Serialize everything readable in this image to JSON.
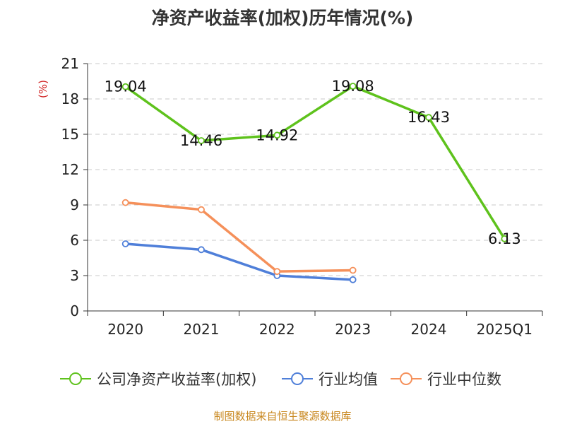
{
  "chart_data": {
    "type": "line",
    "title": "净资产收益率(加权)历年情况(%)",
    "ylabel": "(%)",
    "xlabel": "",
    "categories": [
      "2020",
      "2021",
      "2022",
      "2023",
      "2024",
      "2025Q1"
    ],
    "y_ticks": [
      0,
      3,
      6,
      9,
      12,
      15,
      18,
      21
    ],
    "ylim": [
      0,
      21
    ],
    "grid": true,
    "legend_position": "bottom",
    "series": [
      {
        "name": "公司净资产收益率(加权)",
        "color": "#5ec21c",
        "values": [
          19.04,
          14.46,
          14.92,
          19.08,
          16.43,
          6.13
        ],
        "labels": [
          "19.04",
          "14.46",
          "14.92",
          "19.08",
          "16.43",
          "6.13"
        ]
      },
      {
        "name": "行业均值",
        "color": "#4f7fd9",
        "values": [
          5.7,
          5.2,
          3.0,
          2.65,
          null,
          null
        ]
      },
      {
        "name": "行业中位数",
        "color": "#f5905a",
        "values": [
          9.2,
          8.6,
          3.35,
          3.45,
          null,
          null
        ]
      }
    ],
    "source": "制图数据来自恒生聚源数据库"
  }
}
